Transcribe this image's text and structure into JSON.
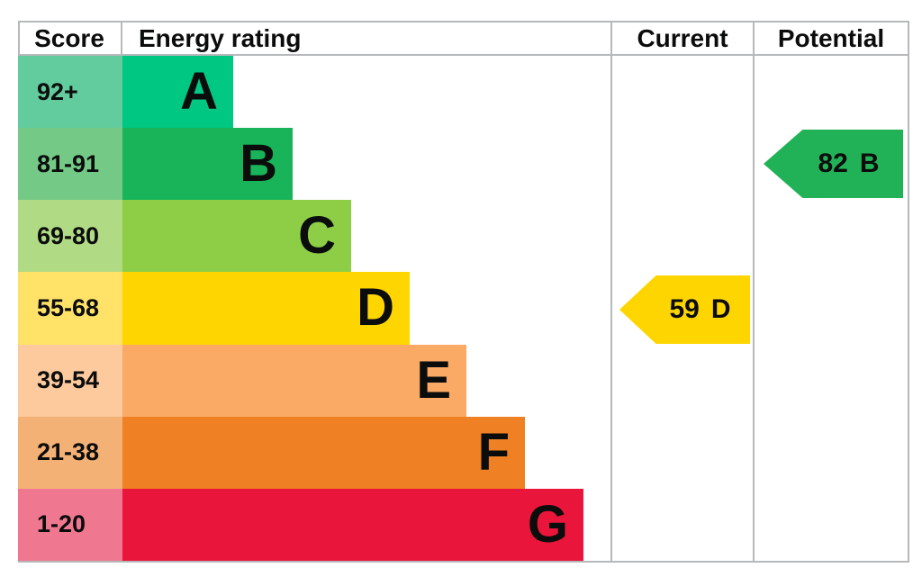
{
  "headers": {
    "score": "Score",
    "energy_rating": "Energy rating",
    "current": "Current",
    "potential": "Potential"
  },
  "bands": [
    {
      "letter": "A",
      "score": "92+",
      "bar_color": "#00c781",
      "score_color": "#63cc9e"
    },
    {
      "letter": "B",
      "score": "81-91",
      "bar_color": "#19b459",
      "score_color": "#74c987"
    },
    {
      "letter": "C",
      "score": "69-80",
      "bar_color": "#8dce46",
      "score_color": "#b1da84"
    },
    {
      "letter": "D",
      "score": "55-68",
      "bar_color": "#ffd500",
      "score_color": "#ffe267"
    },
    {
      "letter": "E",
      "score": "39-54",
      "bar_color": "#fbaa65",
      "score_color": "#fcca9d"
    },
    {
      "letter": "F",
      "score": "21-38",
      "bar_color": "#ef8023",
      "score_color": "#f4b175"
    },
    {
      "letter": "G",
      "score": "1-20",
      "bar_color": "#e9153b",
      "score_color": "#ef7890"
    }
  ],
  "current": {
    "value": "59",
    "band": "D",
    "color": "#ffd500"
  },
  "potential": {
    "value": "82",
    "band": "B",
    "color": "#21b257"
  },
  "border_color": "#b6b8ba",
  "chart_data": {
    "type": "bar",
    "title": "EPC energy efficiency rating chart",
    "columns": [
      "Score",
      "Energy rating",
      "Current",
      "Potential"
    ],
    "categories": [
      "A",
      "B",
      "C",
      "D",
      "E",
      "F",
      "G"
    ],
    "score_ranges": [
      "92+",
      "81-91",
      "69-80",
      "55-68",
      "39-54",
      "21-38",
      "1-20"
    ],
    "band_colors": [
      "#00c781",
      "#19b459",
      "#8dce46",
      "#ffd500",
      "#fbaa65",
      "#ef8023",
      "#e9153b"
    ],
    "current_rating": {
      "value": 59,
      "band": "D",
      "column": "Current",
      "arrow_color": "#ffd500"
    },
    "potential_rating": {
      "value": 82,
      "band": "B",
      "column": "Potential",
      "arrow_color": "#21b257"
    },
    "legend_position": "none",
    "grid": false,
    "notes": "Horizontal stepped bars A (shortest) to G (longest); left-pointing pentagon arrows mark current and potential scores in their band rows."
  }
}
